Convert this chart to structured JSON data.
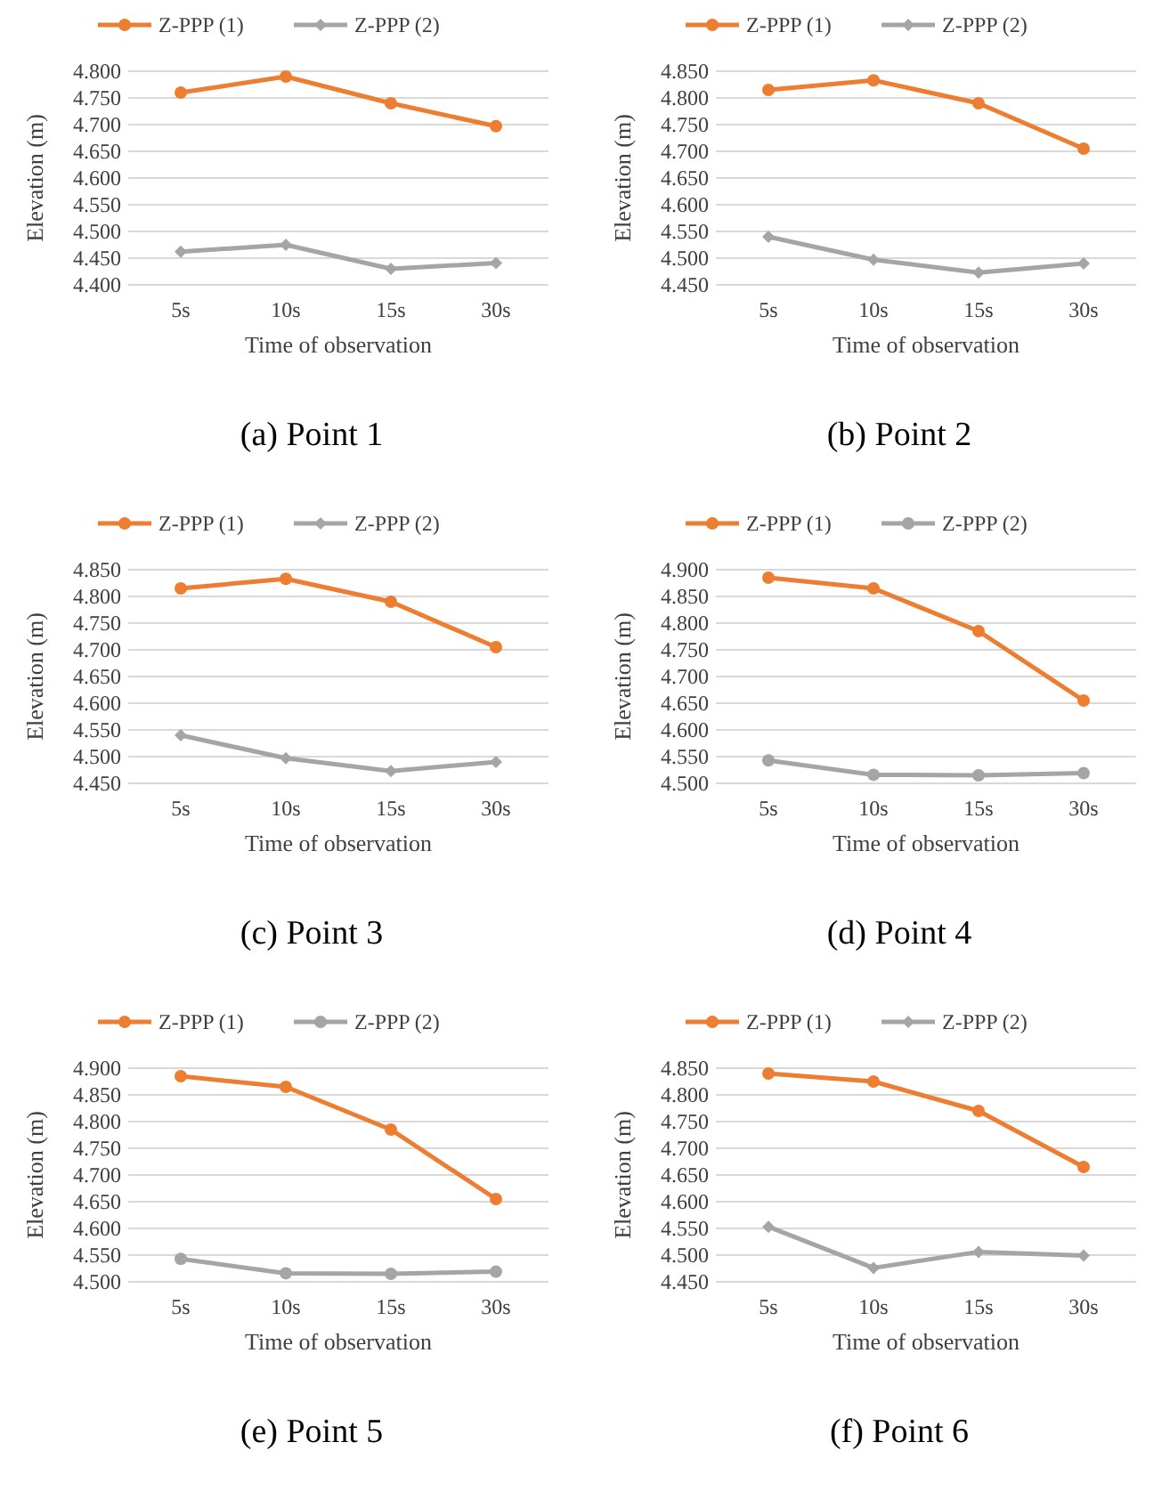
{
  "chart_data": [
    {
      "type": "line",
      "title": "(a) Point 1",
      "xlabel": "Time of observation",
      "ylabel": "Elevation (m)",
      "categories": [
        "5s",
        "10s",
        "15s",
        "30s"
      ],
      "ylim": [
        4.4,
        4.8
      ],
      "yticks": [
        {
          "value": 4.4,
          "label": "4.400"
        },
        {
          "value": 4.45,
          "label": "4.450"
        },
        {
          "value": 4.5,
          "label": "4.500"
        },
        {
          "value": 4.55,
          "label": "4.550"
        },
        {
          "value": 4.6,
          "label": "4.600"
        },
        {
          "value": 4.65,
          "label": "4.650"
        },
        {
          "value": 4.7,
          "label": "4.700"
        },
        {
          "value": 4.75,
          "label": "4.750"
        },
        {
          "value": 4.8,
          "label": "4.800"
        }
      ],
      "grid": "y",
      "legend": "top",
      "series": [
        {
          "name": "Z-PPP (1)",
          "color": "#ed7d31",
          "marker": "circle",
          "values": [
            4.76,
            4.79,
            4.74,
            4.697
          ]
        },
        {
          "name": "Z-PPP (2)",
          "color": "#a5a5a5",
          "marker": "diamond",
          "values": [
            4.462,
            4.475,
            4.43,
            4.441
          ]
        }
      ]
    },
    {
      "type": "line",
      "title": "(b) Point 2",
      "xlabel": "Time of observation",
      "ylabel": "Elevation (m)",
      "categories": [
        "5s",
        "10s",
        "15s",
        "30s"
      ],
      "ylim": [
        4.45,
        4.85
      ],
      "yticks": [
        {
          "value": 4.45,
          "label": "4.450"
        },
        {
          "value": 4.5,
          "label": "4.500"
        },
        {
          "value": 4.55,
          "label": "4.550"
        },
        {
          "value": 4.6,
          "label": "4.600"
        },
        {
          "value": 4.65,
          "label": "4.650"
        },
        {
          "value": 4.7,
          "label": "4.700"
        },
        {
          "value": 4.75,
          "label": "4.750"
        },
        {
          "value": 4.8,
          "label": "4.800"
        },
        {
          "value": 4.85,
          "label": "4.850"
        }
      ],
      "grid": "y",
      "legend": "top",
      "series": [
        {
          "name": "Z-PPP (1)",
          "color": "#ed7d31",
          "marker": "circle",
          "values": [
            4.815,
            4.833,
            4.79,
            4.705
          ]
        },
        {
          "name": "Z-PPP (2)",
          "color": "#a5a5a5",
          "marker": "diamond",
          "values": [
            4.54,
            4.497,
            4.473,
            4.49
          ]
        }
      ]
    },
    {
      "type": "line",
      "title": "(c) Point 3",
      "xlabel": "Time of observation",
      "ylabel": "Elevation (m)",
      "categories": [
        "5s",
        "10s",
        "15s",
        "30s"
      ],
      "ylim": [
        4.45,
        4.85
      ],
      "yticks": [
        {
          "value": 4.45,
          "label": "4.450"
        },
        {
          "value": 4.5,
          "label": "4.500"
        },
        {
          "value": 4.55,
          "label": "4.550"
        },
        {
          "value": 4.6,
          "label": "4.600"
        },
        {
          "value": 4.65,
          "label": "4.650"
        },
        {
          "value": 4.7,
          "label": "4.700"
        },
        {
          "value": 4.75,
          "label": "4.750"
        },
        {
          "value": 4.8,
          "label": "4.800"
        },
        {
          "value": 4.85,
          "label": "4.850"
        }
      ],
      "grid": "y",
      "legend": "top",
      "series": [
        {
          "name": "Z-PPP (1)",
          "color": "#ed7d31",
          "marker": "circle",
          "values": [
            4.815,
            4.833,
            4.79,
            4.705
          ]
        },
        {
          "name": "Z-PPP (2)",
          "color": "#a5a5a5",
          "marker": "diamond",
          "values": [
            4.54,
            4.497,
            4.473,
            4.49
          ]
        }
      ]
    },
    {
      "type": "line",
      "title": "(d) Point 4",
      "xlabel": "Time of observation",
      "ylabel": "Elevation (m)",
      "categories": [
        "5s",
        "10s",
        "15s",
        "30s"
      ],
      "ylim": [
        4.5,
        4.9
      ],
      "yticks": [
        {
          "value": 4.5,
          "label": "4.500"
        },
        {
          "value": 4.55,
          "label": "4.550"
        },
        {
          "value": 4.6,
          "label": "4.600"
        },
        {
          "value": 4.65,
          "label": "4.650"
        },
        {
          "value": 4.7,
          "label": "4.700"
        },
        {
          "value": 4.75,
          "label": "4.750"
        },
        {
          "value": 4.8,
          "label": "4.800"
        },
        {
          "value": 4.85,
          "label": "4.850"
        },
        {
          "value": 4.9,
          "label": "4.900"
        }
      ],
      "grid": "y",
      "legend": "top",
      "series": [
        {
          "name": "Z-PPP (1)",
          "color": "#ed7d31",
          "marker": "circle",
          "values": [
            4.885,
            4.865,
            4.785,
            4.655
          ]
        },
        {
          "name": "Z-PPP (2)",
          "color": "#a5a5a5",
          "marker": "circle",
          "values": [
            4.543,
            4.516,
            4.515,
            4.519
          ]
        }
      ]
    },
    {
      "type": "line",
      "title": "(e) Point 5",
      "xlabel": "Time of observation",
      "ylabel": "Elevation (m)",
      "categories": [
        "5s",
        "10s",
        "15s",
        "30s"
      ],
      "ylim": [
        4.5,
        4.9
      ],
      "yticks": [
        {
          "value": 4.5,
          "label": "4.500"
        },
        {
          "value": 4.55,
          "label": "4.550"
        },
        {
          "value": 4.6,
          "label": "4.600"
        },
        {
          "value": 4.65,
          "label": "4.650"
        },
        {
          "value": 4.7,
          "label": "4.700"
        },
        {
          "value": 4.75,
          "label": "4.750"
        },
        {
          "value": 4.8,
          "label": "4.800"
        },
        {
          "value": 4.85,
          "label": "4.850"
        },
        {
          "value": 4.9,
          "label": "4.900"
        }
      ],
      "grid": "y",
      "legend": "top",
      "series": [
        {
          "name": "Z-PPP (1)",
          "color": "#ed7d31",
          "marker": "circle",
          "values": [
            4.885,
            4.865,
            4.785,
            4.655
          ]
        },
        {
          "name": "Z-PPP (2)",
          "color": "#a5a5a5",
          "marker": "circle",
          "values": [
            4.543,
            4.516,
            4.515,
            4.519
          ]
        }
      ]
    },
    {
      "type": "line",
      "title": "(f) Point 6",
      "xlabel": "Time of observation",
      "ylabel": "Elevation (m)",
      "categories": [
        "5s",
        "10s",
        "15s",
        "30s"
      ],
      "ylim": [
        4.45,
        4.85
      ],
      "yticks": [
        {
          "value": 4.45,
          "label": "4.450"
        },
        {
          "value": 4.5,
          "label": "4.500"
        },
        {
          "value": 4.55,
          "label": "4.550"
        },
        {
          "value": 4.6,
          "label": "4.600"
        },
        {
          "value": 4.65,
          "label": "4.650"
        },
        {
          "value": 4.7,
          "label": "4.700"
        },
        {
          "value": 4.75,
          "label": "4.750"
        },
        {
          "value": 4.8,
          "label": "4.800"
        },
        {
          "value": 4.85,
          "label": "4.850"
        }
      ],
      "grid": "y",
      "legend": "top",
      "series": [
        {
          "name": "Z-PPP (1)",
          "color": "#ed7d31",
          "marker": "circle",
          "values": [
            4.84,
            4.825,
            4.77,
            4.665
          ]
        },
        {
          "name": "Z-PPP (2)",
          "color": "#a5a5a5",
          "marker": "diamond",
          "values": [
            4.553,
            4.476,
            4.506,
            4.499
          ]
        }
      ]
    }
  ]
}
